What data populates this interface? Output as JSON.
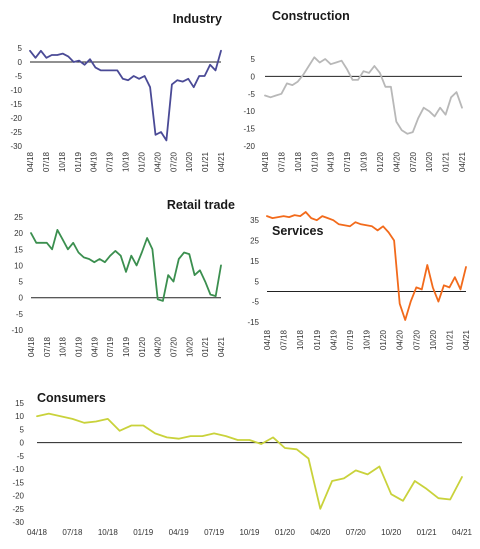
{
  "chart_data": [
    {
      "type": "line",
      "title": "Industry",
      "color": "#4a4a96",
      "x_tick_labels": [
        "04/18",
        "07/18",
        "10/18",
        "01/19",
        "04/19",
        "07/19",
        "10/19",
        "01/20",
        "04/20",
        "07/20",
        "10/20",
        "01/21",
        "04/21"
      ],
      "y_ticks": [
        5,
        0,
        -5,
        -10,
        -15,
        -20,
        -25,
        -30
      ],
      "ylim": [
        -30,
        5
      ],
      "series": [
        {
          "values": [
            4,
            1.5,
            4,
            1.5,
            2.5,
            2.5,
            3,
            2,
            0,
            0.5,
            -1,
            1,
            -2,
            -3,
            -3,
            -3,
            -3,
            -6,
            -6.5,
            -5,
            -6,
            -5,
            -9,
            -26,
            -25,
            -28,
            -8,
            -6.5,
            -7,
            -6,
            -9,
            -5,
            -5,
            -1,
            -3,
            4
          ]
        }
      ]
    },
    {
      "type": "line",
      "title": "Construction",
      "color": "#b8b8b8",
      "x_tick_labels": [
        "04/18",
        "07/18",
        "10/18",
        "01/19",
        "04/19",
        "07/19",
        "10/19",
        "01/20",
        "04/20",
        "07/20",
        "10/20",
        "01/21",
        "04/21"
      ],
      "y_ticks": [
        5,
        0,
        -5,
        -10,
        -15,
        -20
      ],
      "ylim": [
        -20,
        5
      ],
      "series": [
        {
          "values": [
            -5.5,
            -6,
            -5.5,
            -5,
            -2,
            -2.5,
            -1.5,
            0.5,
            3,
            5.5,
            4,
            5,
            3.5,
            4,
            4.5,
            2,
            -1,
            -1,
            1.5,
            1,
            3,
            1,
            -3,
            -3,
            -13,
            -15.5,
            -16.5,
            -16,
            -12,
            -9,
            -10,
            -11.5,
            -9,
            -11,
            -6,
            -4.5,
            -9
          ]
        }
      ]
    },
    {
      "type": "line",
      "title": "Retail trade",
      "color": "#3b8f4f",
      "x_tick_labels": [
        "04/18",
        "07/18",
        "10/18",
        "01/19",
        "04/19",
        "07/19",
        "10/19",
        "01/20",
        "04/20",
        "07/20",
        "10/20",
        "01/21",
        "04/21"
      ],
      "y_ticks": [
        25,
        20,
        15,
        10,
        5,
        0,
        -5,
        -10
      ],
      "ylim": [
        -10,
        25
      ],
      "series": [
        {
          "values": [
            20,
            17,
            17,
            17,
            15,
            21,
            18,
            15,
            17,
            14,
            12.5,
            12,
            11,
            12,
            11,
            13,
            14.5,
            13,
            8,
            13,
            10,
            14,
            18.5,
            15,
            -0.5,
            -1,
            7,
            5,
            12,
            14,
            13.5,
            7,
            8.5,
            5,
            1,
            0.5,
            10
          ]
        }
      ]
    },
    {
      "type": "line",
      "title": "Services",
      "color": "#f26a1b",
      "x_tick_labels": [
        "04/18",
        "07/18",
        "10/18",
        "01/19",
        "04/19",
        "07/19",
        "10/19",
        "01/20",
        "04/20",
        "07/20",
        "10/20",
        "01/21",
        "04/21"
      ],
      "y_ticks": [
        35,
        25,
        15,
        5,
        -5,
        -15
      ],
      "ylim": [
        -15,
        40
      ],
      "series": [
        {
          "values": [
            37,
            36,
            36.5,
            37,
            36.5,
            37.5,
            37,
            39,
            36,
            35,
            37,
            36,
            35,
            33,
            32.5,
            32,
            34,
            33,
            32.5,
            32,
            30,
            32,
            29,
            25,
            -6,
            -14,
            -5,
            2,
            1,
            13,
            2,
            -5,
            3,
            2,
            7,
            1,
            12
          ]
        }
      ]
    },
    {
      "type": "line",
      "title": "Consumers",
      "color": "#c9d23b",
      "x_tick_labels": [
        "04/18",
        "07/18",
        "10/18",
        "01/19",
        "04/19",
        "07/19",
        "10/19",
        "01/20",
        "04/20",
        "07/20",
        "10/20",
        "01/21",
        "04/21"
      ],
      "y_ticks": [
        15,
        10,
        5,
        0,
        -5,
        -10,
        -15,
        -20,
        -25,
        -30
      ],
      "ylim": [
        -30,
        15
      ],
      "series": [
        {
          "values": [
            10,
            11,
            10,
            9,
            7.5,
            8,
            9,
            4.5,
            6.5,
            6.5,
            3.5,
            2,
            1.5,
            2.5,
            2.5,
            3.5,
            2.5,
            1,
            1,
            -0.5,
            2,
            -2,
            -2.5,
            -6,
            -25,
            -14.5,
            -13.5,
            -10.5,
            -12,
            -9,
            -19.5,
            -22,
            -14.5,
            -17.5,
            -21,
            -21.5,
            -13
          ]
        }
      ]
    }
  ]
}
